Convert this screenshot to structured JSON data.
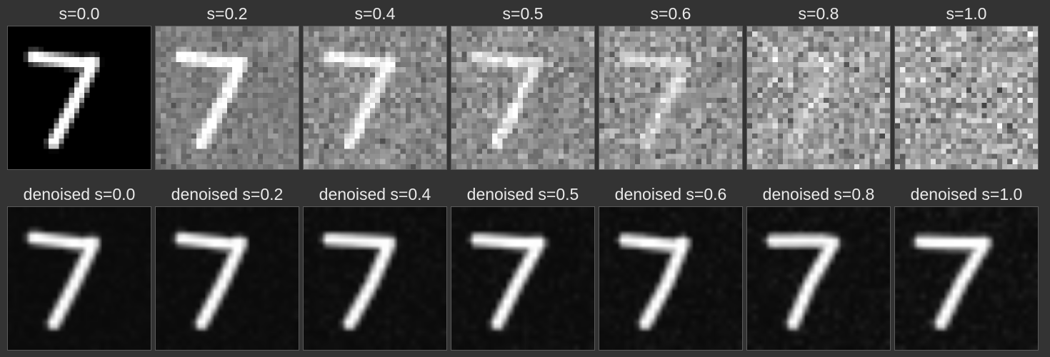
{
  "noisy_row": {
    "panels": [
      {
        "label": "s=0.0",
        "noise_level": 0.0
      },
      {
        "label": "s=0.2",
        "noise_level": 0.2
      },
      {
        "label": "s=0.4",
        "noise_level": 0.4
      },
      {
        "label": "s=0.5",
        "noise_level": 0.5
      },
      {
        "label": "s=0.6",
        "noise_level": 0.6
      },
      {
        "label": "s=0.8",
        "noise_level": 0.8
      },
      {
        "label": "s=1.0",
        "noise_level": 1.0
      }
    ]
  },
  "denoised_row": {
    "panels": [
      {
        "label": "denoised s=0.0",
        "noise_level": 0.0
      },
      {
        "label": "denoised s=0.2",
        "noise_level": 0.2
      },
      {
        "label": "denoised s=0.4",
        "noise_level": 0.4
      },
      {
        "label": "denoised s=0.5",
        "noise_level": 0.5
      },
      {
        "label": "denoised s=0.6",
        "noise_level": 0.6
      },
      {
        "label": "denoised s=0.8",
        "noise_level": 0.8
      },
      {
        "label": "denoised s=1.0",
        "noise_level": 1.0
      }
    ]
  },
  "colors": {
    "background": "#333333",
    "label_text": "#e9e9e9",
    "thumb_border": "#5a5a5a"
  }
}
